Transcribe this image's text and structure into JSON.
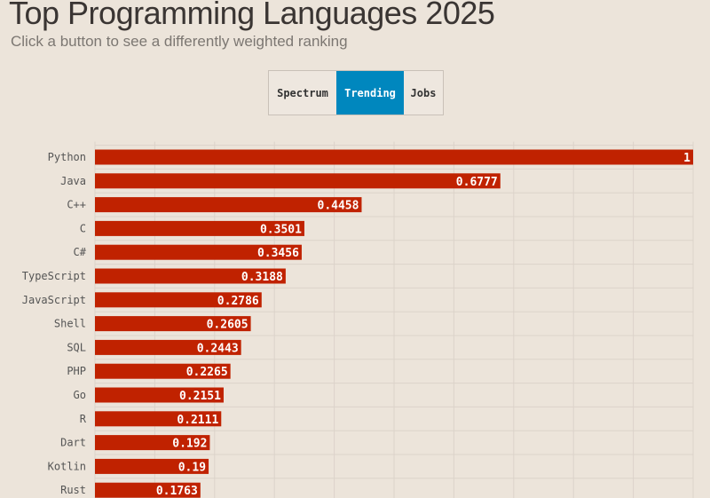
{
  "header": {
    "title": "Top Programming Languages 2025",
    "subtitle": "Click a button to see a differently weighted ranking"
  },
  "buttons": [
    {
      "label": "Spectrum",
      "active": false
    },
    {
      "label": "Trending",
      "active": true
    },
    {
      "label": "Jobs",
      "active": false
    }
  ],
  "colors": {
    "bar": "#c02200",
    "active_button": "#0087be",
    "background": "#ece4da"
  },
  "chart_data": {
    "type": "bar",
    "orientation": "horizontal",
    "categories": [
      "Python",
      "Java",
      "C++",
      "C",
      "C#",
      "TypeScript",
      "JavaScript",
      "Shell",
      "SQL",
      "PHP",
      "Go",
      "R",
      "Dart",
      "Kotlin",
      "Rust"
    ],
    "values": [
      1,
      0.6777,
      0.4458,
      0.3501,
      0.3456,
      0.3188,
      0.2786,
      0.2605,
      0.2443,
      0.2265,
      0.2151,
      0.2111,
      0.192,
      0.19,
      0.1763
    ],
    "value_labels": [
      "1",
      "0.6777",
      "0.4458",
      "0.3501",
      "0.3456",
      "0.3188",
      "0.2786",
      "0.2605",
      "0.2443",
      "0.2265",
      "0.2151",
      "0.2111",
      "0.192",
      "0.19",
      "0.1763"
    ],
    "xlim": [
      0,
      1
    ],
    "grid": true,
    "legend": "none"
  }
}
